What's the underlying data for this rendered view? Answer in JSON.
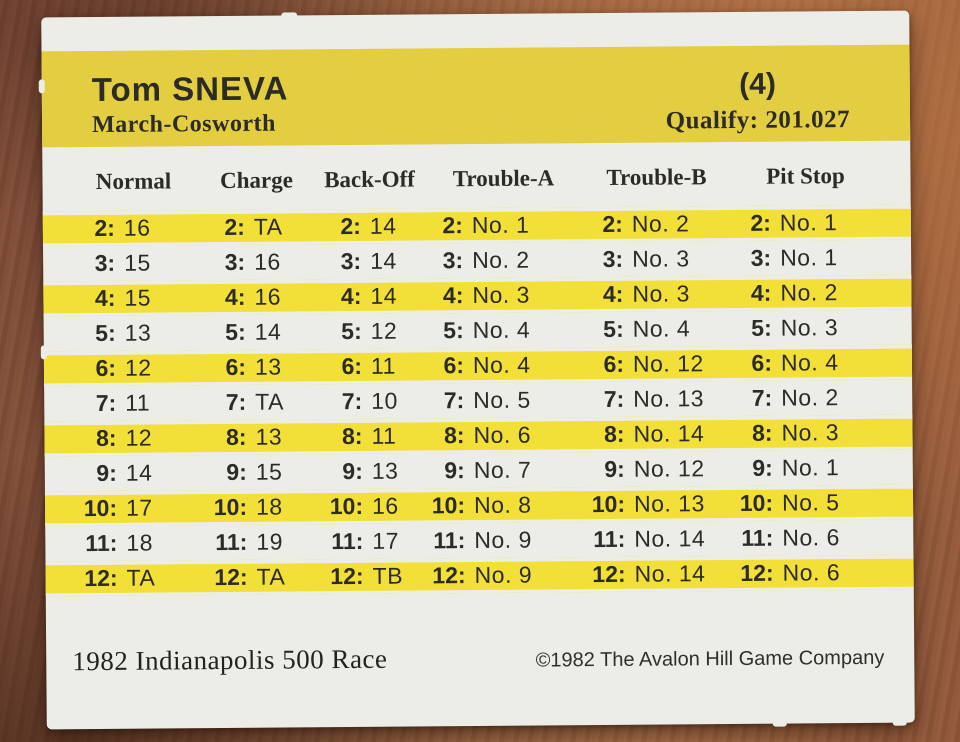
{
  "card": {
    "header": {
      "driver": "Tom SNEVA",
      "car": "March-Cosworth",
      "start_position": "(4)",
      "qualify": "Qualify: 201.027"
    },
    "table": {
      "columns": [
        "Normal",
        "Charge",
        "Back-Off",
        "Trouble-A",
        "Trouble-B",
        "Pit Stop"
      ],
      "rows": [
        {
          "label": "2:",
          "cells": [
            "16",
            "TA",
            "14",
            "No. 1",
            "No. 2",
            "No. 1"
          ]
        },
        {
          "label": "3:",
          "cells": [
            "15",
            "16",
            "14",
            "No. 2",
            "No. 3",
            "No. 1"
          ]
        },
        {
          "label": "4:",
          "cells": [
            "15",
            "16",
            "14",
            "No. 3",
            "No. 3",
            "No. 2"
          ]
        },
        {
          "label": "5:",
          "cells": [
            "13",
            "14",
            "12",
            "No. 4",
            "No. 4",
            "No. 3"
          ]
        },
        {
          "label": "6:",
          "cells": [
            "12",
            "13",
            "11",
            "No. 4",
            "No. 12",
            "No. 4"
          ]
        },
        {
          "label": "7:",
          "cells": [
            "11",
            "TA",
            "10",
            "No. 5",
            "No. 13",
            "No. 2"
          ]
        },
        {
          "label": "8:",
          "cells": [
            "12",
            "13",
            "11",
            "No. 6",
            "No. 14",
            "No. 3"
          ]
        },
        {
          "label": "9:",
          "cells": [
            "14",
            "15",
            "13",
            "No. 7",
            "No. 12",
            "No. 1"
          ]
        },
        {
          "label": "10:",
          "cells": [
            "17",
            "18",
            "16",
            "No. 8",
            "No. 13",
            "No. 5"
          ]
        },
        {
          "label": "11:",
          "cells": [
            "18",
            "19",
            "17",
            "No. 9",
            "No. 14",
            "No. 6"
          ]
        },
        {
          "label": "12:",
          "cells": [
            "TA",
            "TA",
            "TB",
            "No. 9",
            "No. 14",
            "No. 6"
          ]
        }
      ]
    },
    "footer": {
      "left": "1982 Indianapolis 500 Race",
      "right": "©1982 The Avalon Hill Game Company"
    },
    "colors": {
      "header_band": "#e3cd41",
      "row_stripe": "#f2df38",
      "card": "#ecede7",
      "ink": "#2d2b26"
    }
  }
}
